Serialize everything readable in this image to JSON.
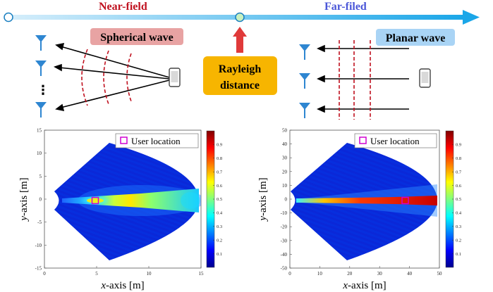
{
  "top": {
    "near_field_label": "Near-field",
    "far_field_label": "Far-filed",
    "spherical_wave_label": "Spherical wave",
    "planar_wave_label": "Planar wave",
    "rayleigh_line1": "Rayleigh",
    "rayleigh_line2": "distance",
    "dots": "⋮",
    "colors": {
      "near_field_text": "#c0111f",
      "far_field_text": "#4a56d8",
      "spherical_badge": "#e8a3a3",
      "planar_badge": "#a9d4f5",
      "rayleigh_badge": "#f7b500",
      "wavefront": "#c0111f",
      "up_arrow": "#e03a3a",
      "timeline_start": "#d6eefb",
      "timeline_end": "#1aa6e8",
      "mid_dot": "#c8f0c0"
    }
  },
  "chart_data": [
    {
      "type": "heatmap",
      "xlabel_prefix": "x",
      "xlabel_suffix": "-axis [m]",
      "ylabel_prefix": "y",
      "ylabel_suffix": "-axis [m]",
      "xlim": [
        0,
        15
      ],
      "ylim": [
        -15,
        15
      ],
      "xticks": [
        0,
        5,
        10,
        15
      ],
      "yticks": [
        15,
        10,
        5,
        0,
        -5,
        -10,
        -15
      ],
      "legend": "User location",
      "legend_position": "top-right",
      "user_location": [
        5,
        0
      ],
      "colorbar_ticks": [
        "0.9",
        "0.8",
        "0.7",
        "0.6",
        "0.5",
        "0.4",
        "0.3",
        "0.2",
        "0.1"
      ],
      "beam": "near-field focused"
    },
    {
      "type": "heatmap",
      "xlabel_prefix": "x",
      "xlabel_suffix": "-axis [m]",
      "ylabel_prefix": "y",
      "ylabel_suffix": "-axis [m]",
      "xlim": [
        0,
        50
      ],
      "ylim": [
        -50,
        50
      ],
      "xticks": [
        0,
        10,
        20,
        30,
        40,
        50
      ],
      "yticks": [
        50,
        40,
        30,
        20,
        10,
        0,
        -10,
        -20,
        -30,
        -40,
        -50
      ],
      "legend": "User location",
      "legend_position": "top-right",
      "user_location": [
        40,
        0
      ],
      "colorbar_ticks": [
        "0.9",
        "0.8",
        "0.7",
        "0.6",
        "0.5",
        "0.4",
        "0.3",
        "0.2",
        "0.1"
      ],
      "beam": "far-field steered"
    }
  ]
}
